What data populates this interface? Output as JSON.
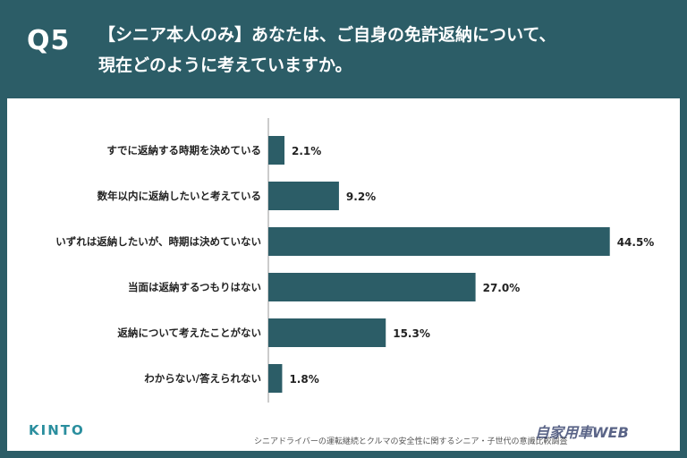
{
  "header": {
    "qnum": "Q5",
    "title_line1": "【シニア本人のみ】あなたは、ご自身の免許返納について、",
    "title_line2": "現在どのように考えていますか。"
  },
  "colors": {
    "bar": "#2c5d67",
    "header_bg": "#2c5d67"
  },
  "chart_data": {
    "type": "bar",
    "orientation": "horizontal",
    "categories": [
      "すでに返納する時期を決めている",
      "数年以内に返納したいと考えている",
      "いずれは返納したいが、時期は決めていない",
      "当面は返納するつもりはない",
      "返納について考えたことがない",
      "わからない/答えられない"
    ],
    "values": [
      2.1,
      9.2,
      44.5,
      27.0,
      15.3,
      1.8
    ],
    "value_labels": [
      "2.1%",
      "9.2%",
      "44.5%",
      "27.0%",
      "15.3%",
      "1.8%"
    ],
    "title": "",
    "xlabel": "",
    "ylabel": "",
    "xlim": [
      0,
      45
    ],
    "grid": false,
    "legend": "none"
  },
  "footer": {
    "logo": "KINTO",
    "footnote": "シニアドライバーの運転継続とクルマの安全性に関するシニア・子世代の意識比較調査",
    "watermark": "自家用車WEB"
  }
}
